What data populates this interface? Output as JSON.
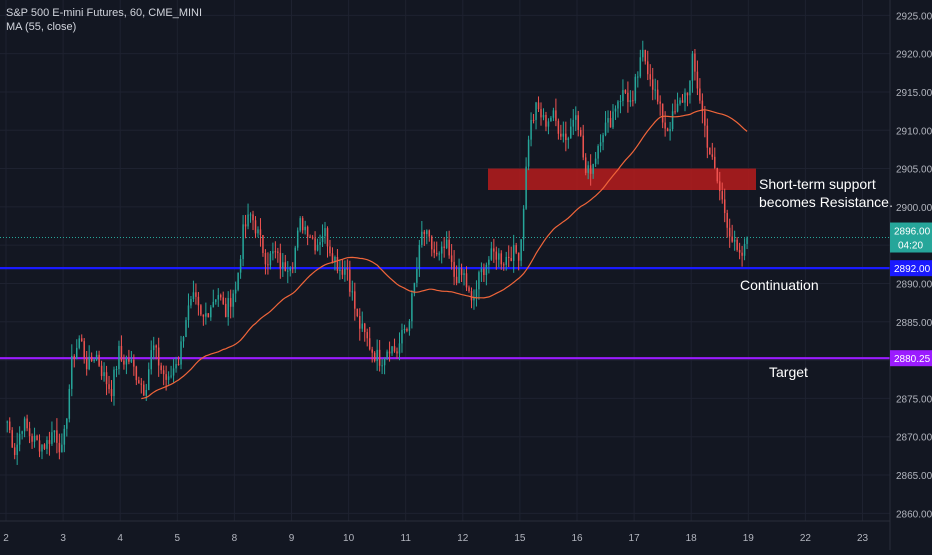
{
  "header": {
    "symbol_line": "S&P 500 E-mini Futures, 60, CME_MINI",
    "indicator_line": "MA (55, close)"
  },
  "colors": {
    "background": "#131722",
    "grid": "#1e2230",
    "axis_text": "#b2b5be",
    "candle_up": "#26a69a",
    "candle_down": "#ef5350",
    "ma": "#f0653a",
    "resistance_zone": "#b71c1c",
    "continuation_line": "#1a1aff",
    "target_line": "#9b1cff",
    "price_label_bg": "#26a69a",
    "annotation_text": "#ffffff"
  },
  "chart_data": {
    "type": "candlestick",
    "title": "S&P 500 E-mini Futures, 60, CME_MINI",
    "indicator": "MA (55, close)",
    "y_range": [
      2859,
      2927
    ],
    "y_ticks": [
      2860,
      2865,
      2870,
      2875,
      2880,
      2885,
      2890,
      2895,
      2900,
      2905,
      2910,
      2915,
      2920,
      2925
    ],
    "y_tick_labels": [
      "2860.00",
      "2865.00",
      "2870.00",
      "2875.00",
      "2880.00",
      "2885.00",
      "2890.00",
      "2895.00",
      "2900.00",
      "2905.00",
      "2910.00",
      "2915.00",
      "2920.00",
      "2925.00"
    ],
    "x_ticks": [
      "2",
      "3",
      "4",
      "5",
      "8",
      "9",
      "10",
      "11",
      "12",
      "15",
      "16",
      "17",
      "18",
      "19",
      "22",
      "23"
    ],
    "session_keyframes": [
      [
        2872,
        2868,
        2872,
        2870,
        2869,
        2869,
        2871,
        2868
      ],
      [
        2870,
        2880,
        2883,
        2879,
        2881,
        2878,
        2876,
        2881
      ],
      [
        2880,
        2880,
        2878,
        2876,
        2882,
        2879,
        2877,
        2880
      ],
      [
        2880,
        2886,
        2888,
        2885,
        2887,
        2889,
        2886,
        2889
      ],
      [
        2889,
        2897,
        2899,
        2896,
        2893,
        2894,
        2892,
        2893
      ],
      [
        2893,
        2898,
        2897,
        2895,
        2897,
        2894,
        2892,
        2892
      ],
      [
        2890,
        2885,
        2883,
        2881,
        2880,
        2882,
        2881,
        2884
      ],
      [
        2884,
        2890,
        2897,
        2895,
        2893,
        2895,
        2891,
        2891
      ],
      [
        2891,
        2887,
        2891,
        2893,
        2894,
        2893,
        2894,
        2894
      ],
      [
        2896,
        2910,
        2913,
        2911,
        2912,
        2910,
        2909,
        2913
      ],
      [
        2911,
        2904,
        2906,
        2910,
        2911,
        2914,
        2915,
        2913
      ],
      [
        2916,
        2920,
        2917,
        2913,
        2910,
        2912,
        2914,
        2916
      ],
      [
        2919,
        2914,
        2908,
        2904,
        2900,
        2896,
        2893,
        2895
      ]
    ],
    "last_close": 2896,
    "ma_period": 55,
    "resistance_zone": [
      2902.2,
      2905.0
    ],
    "horizontal_lines": [
      {
        "name": "Continuation",
        "price": 2892.0,
        "label": "2892.00"
      },
      {
        "name": "Target",
        "price": 2880.25,
        "label": "2880.25"
      }
    ],
    "price_labels": {
      "last": "2896.00",
      "countdown": "04:20"
    }
  },
  "annotations": {
    "zone_text_line1": "Short-term support",
    "zone_text_line2": "becomes Resistance.",
    "continuation_text": "Continuation",
    "target_text": "Target"
  }
}
